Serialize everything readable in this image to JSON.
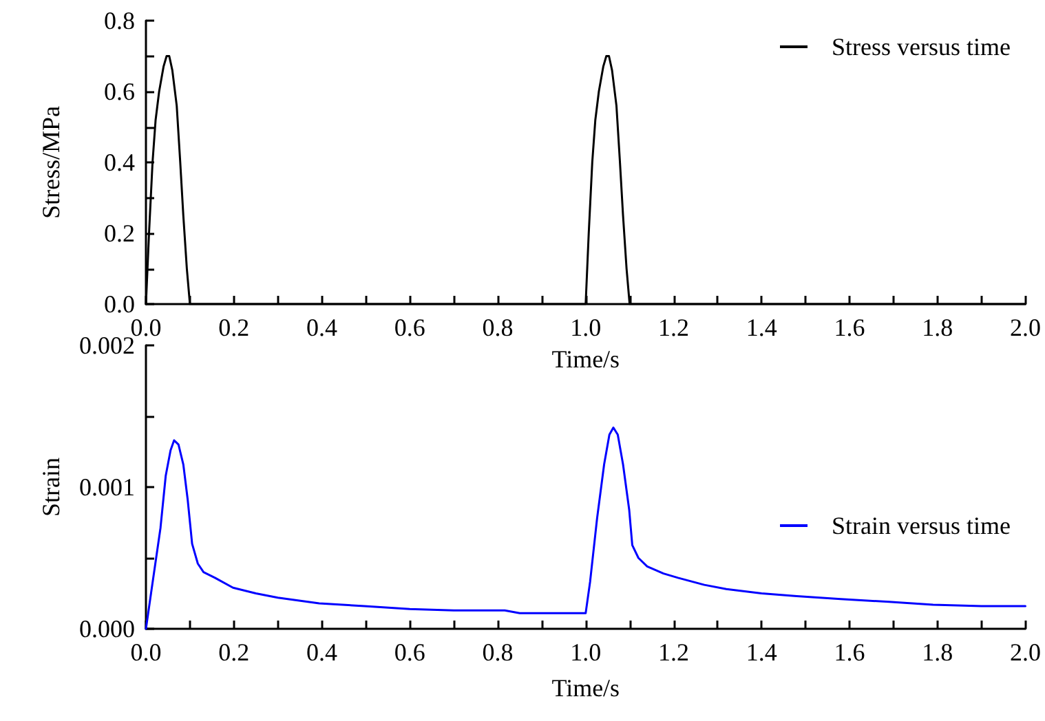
{
  "chart_data": [
    {
      "type": "line",
      "xlabel": "Time/s",
      "ylabel": "Stress/MPa",
      "xlim": [
        0,
        2
      ],
      "ylim": [
        0,
        0.8
      ],
      "xticks": [
        {
          "value": 0,
          "label": "0.0"
        },
        {
          "value": 0.1,
          "label": null
        },
        {
          "value": 0.2,
          "label": "0.2"
        },
        {
          "value": 0.3,
          "label": null
        },
        {
          "value": 0.4,
          "label": "0.4"
        },
        {
          "value": 0.5,
          "label": null
        },
        {
          "value": 0.6,
          "label": "0.6"
        },
        {
          "value": 0.7,
          "label": null
        },
        {
          "value": 0.8,
          "label": "0.8"
        },
        {
          "value": 0.9,
          "label": null
        },
        {
          "value": 1,
          "label": "1.0"
        },
        {
          "value": 1.1,
          "label": null
        },
        {
          "value": 1.2,
          "label": "1.2"
        },
        {
          "value": 1.3,
          "label": null
        },
        {
          "value": 1.4,
          "label": "1.4"
        },
        {
          "value": 1.5,
          "label": null
        },
        {
          "value": 1.6,
          "label": "1.6"
        },
        {
          "value": 1.7,
          "label": null
        },
        {
          "value": 1.8,
          "label": "1.8"
        },
        {
          "value": 1.9,
          "label": null
        },
        {
          "value": 2,
          "label": "2.0"
        }
      ],
      "yticks": [
        {
          "value": 0,
          "label": "0.0"
        },
        {
          "value": 0.1,
          "label": null
        },
        {
          "value": 0.2,
          "label": "0.2"
        },
        {
          "value": 0.3,
          "label": null
        },
        {
          "value": 0.4,
          "label": "0.4"
        },
        {
          "value": 0.5,
          "label": null
        },
        {
          "value": 0.6,
          "label": "0.6"
        },
        {
          "value": 0.7,
          "label": null
        },
        {
          "value": 0.8,
          "label": "0.8"
        }
      ],
      "legend": "top right",
      "grid": false,
      "marker": "none",
      "line_style": "solid",
      "series": [
        {
          "name": "Stress versus time",
          "color": "#000000",
          "x": [
            0,
            0.007,
            0.015,
            0.022,
            0.03,
            0.04,
            0.047,
            0.05,
            0.053,
            0.06,
            0.07,
            0.078,
            0.085,
            0.093,
            0.1,
            0.5,
            1.0,
            1.007,
            1.015,
            1.022,
            1.03,
            1.04,
            1.047,
            1.05,
            1.053,
            1.06,
            1.07,
            1.078,
            1.085,
            1.093,
            1.1,
            2.0
          ],
          "values": [
            0,
            0.2,
            0.4,
            0.52,
            0.6,
            0.67,
            0.7,
            0.7,
            0.7,
            0.66,
            0.56,
            0.4,
            0.25,
            0.1,
            0,
            0,
            0,
            0.2,
            0.4,
            0.52,
            0.6,
            0.67,
            0.7,
            0.7,
            0.7,
            0.66,
            0.56,
            0.4,
            0.25,
            0.1,
            0,
            0
          ]
        }
      ]
    },
    {
      "type": "line",
      "xlabel": "Time/s",
      "ylabel": "Strain",
      "xlim": [
        0,
        2
      ],
      "ylim": [
        0,
        0.002
      ],
      "xticks": [
        {
          "value": 0,
          "label": "0.0"
        },
        {
          "value": 0.1,
          "label": null
        },
        {
          "value": 0.2,
          "label": "0.2"
        },
        {
          "value": 0.3,
          "label": null
        },
        {
          "value": 0.4,
          "label": "0.4"
        },
        {
          "value": 0.5,
          "label": null
        },
        {
          "value": 0.6,
          "label": "0.6"
        },
        {
          "value": 0.7,
          "label": null
        },
        {
          "value": 0.8,
          "label": "0.8"
        },
        {
          "value": 0.9,
          "label": null
        },
        {
          "value": 1,
          "label": "1.0"
        },
        {
          "value": 1.1,
          "label": null
        },
        {
          "value": 1.2,
          "label": "1.2"
        },
        {
          "value": 1.3,
          "label": null
        },
        {
          "value": 1.4,
          "label": "1.4"
        },
        {
          "value": 1.5,
          "label": null
        },
        {
          "value": 1.6,
          "label": "1.6"
        },
        {
          "value": 1.7,
          "label": null
        },
        {
          "value": 1.8,
          "label": "1.8"
        },
        {
          "value": 1.9,
          "label": null
        },
        {
          "value": 2,
          "label": "2.0"
        }
      ],
      "yticks": [
        {
          "value": 0,
          "label": "0.000"
        },
        {
          "value": 0.0005,
          "label": null
        },
        {
          "value": 0.001,
          "label": "0.001"
        },
        {
          "value": 0.0015,
          "label": null
        },
        {
          "value": 0.002,
          "label": "0.002"
        }
      ],
      "legend": "right",
      "grid": false,
      "marker": "none",
      "line_style": "solid",
      "series": [
        {
          "name": "Strain versus time",
          "color": "#0000ff",
          "x": [
            0,
            0.012,
            0.033,
            0.045,
            0.056,
            0.064,
            0.074,
            0.085,
            0.095,
            0.105,
            0.118,
            0.131,
            0.157,
            0.198,
            0.25,
            0.3,
            0.394,
            0.497,
            0.6,
            0.7,
            0.816,
            0.85,
            1.0,
            1.01,
            1.026,
            1.042,
            1.054,
            1.063,
            1.073,
            1.085,
            1.099,
            1.106,
            1.12,
            1.14,
            1.177,
            1.21,
            1.27,
            1.32,
            1.4,
            1.48,
            1.58,
            1.69,
            1.79,
            1.9,
            2.0
          ],
          "values": [
            0,
            0.00026,
            0.00071,
            0.00108,
            0.00126,
            0.00133,
            0.0013,
            0.00116,
            0.00091,
            0.0006,
            0.00046,
            0.0004,
            0.00036,
            0.00029,
            0.00025,
            0.00022,
            0.00018,
            0.00016,
            0.00014,
            0.00013,
            0.00013,
            0.00011,
            0.00011,
            0.00033,
            0.00078,
            0.00116,
            0.00137,
            0.00142,
            0.00137,
            0.00116,
            0.00084,
            0.00059,
            0.0005,
            0.00044,
            0.00039,
            0.00036,
            0.00031,
            0.00028,
            0.00025,
            0.00023,
            0.00021,
            0.00019,
            0.00017,
            0.00016,
            0.00016
          ]
        }
      ]
    }
  ]
}
